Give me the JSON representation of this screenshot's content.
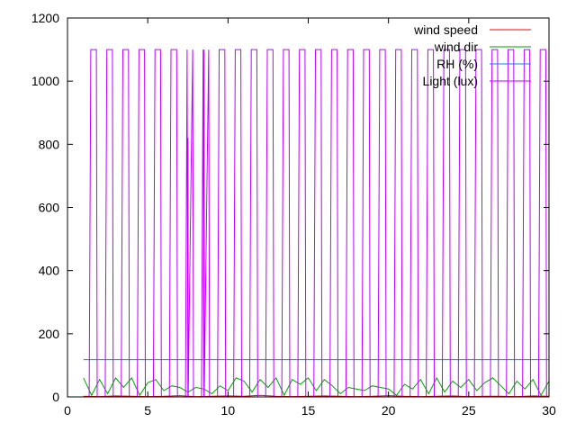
{
  "chart_data": {
    "type": "line",
    "title": "",
    "xlabel": "",
    "ylabel": "",
    "xlim": [
      0,
      30
    ],
    "ylim": [
      0,
      1200
    ],
    "grid": false,
    "legend_position": "top-right",
    "x_ticks": [
      0,
      5,
      10,
      15,
      20,
      25,
      30
    ],
    "y_ticks": [
      0,
      200,
      400,
      600,
      800,
      1000,
      1200
    ],
    "series": [
      {
        "name": "wind speed",
        "color": "#ff0000",
        "x": [
          1,
          2,
          3,
          4,
          5,
          6,
          7,
          8,
          9,
          10,
          11,
          12,
          13,
          14,
          15,
          16,
          17,
          18,
          19,
          20,
          21,
          22,
          23,
          24,
          25,
          26,
          27,
          28,
          29,
          30
        ],
        "values": [
          2,
          1,
          3,
          2,
          1,
          2,
          4,
          1,
          2,
          3,
          2,
          5,
          2,
          1,
          2,
          3,
          2,
          1,
          2,
          4,
          2,
          1,
          2,
          3,
          1,
          2,
          2,
          1,
          3,
          2
        ]
      },
      {
        "name": "wind dir",
        "color": "#00a000",
        "x": [
          1.0,
          1.5,
          2.0,
          2.5,
          3.0,
          3.5,
          4.0,
          4.5,
          5.0,
          5.5,
          6.0,
          6.5,
          7.0,
          7.5,
          8.0,
          8.5,
          9.0,
          9.5,
          10.0,
          10.5,
          11.0,
          11.5,
          12.0,
          12.5,
          13.0,
          13.5,
          14.0,
          14.5,
          15.0,
          15.5,
          16.0,
          16.5,
          17.0,
          17.5,
          18.0,
          18.5,
          19.0,
          19.5,
          20.0,
          20.5,
          21.0,
          21.5,
          22.0,
          22.5,
          23.0,
          23.5,
          24.0,
          24.5,
          25.0,
          25.5,
          26.0,
          26.5,
          27.0,
          27.5,
          28.0,
          28.5,
          29.0,
          29.5,
          30.0
        ],
        "values": [
          60,
          5,
          55,
          10,
          60,
          30,
          60,
          5,
          45,
          55,
          20,
          35,
          30,
          15,
          30,
          25,
          10,
          35,
          20,
          60,
          50,
          15,
          55,
          30,
          60,
          5,
          55,
          40,
          60,
          20,
          55,
          35,
          10,
          30,
          25,
          20,
          35,
          30,
          25,
          5,
          40,
          25,
          55,
          10,
          60,
          15,
          50,
          30,
          55,
          20,
          45,
          60,
          35,
          10,
          50,
          25,
          55,
          5,
          50
        ]
      },
      {
        "name": "RH (%)",
        "color": "#0080ff",
        "x": [
          1,
          30
        ],
        "values": [
          118,
          118
        ]
      },
      {
        "name": "Light (lux)",
        "color": "#c000ff",
        "period_days": 1,
        "first_rise_day": 1.35,
        "last_fall_day": 29.95,
        "daytime_value": 1100,
        "night_value": 0,
        "anomalies": [
          {
            "x": 7.5,
            "value": 820
          },
          {
            "x": 8.5,
            "value": 1100
          }
        ]
      }
    ]
  }
}
